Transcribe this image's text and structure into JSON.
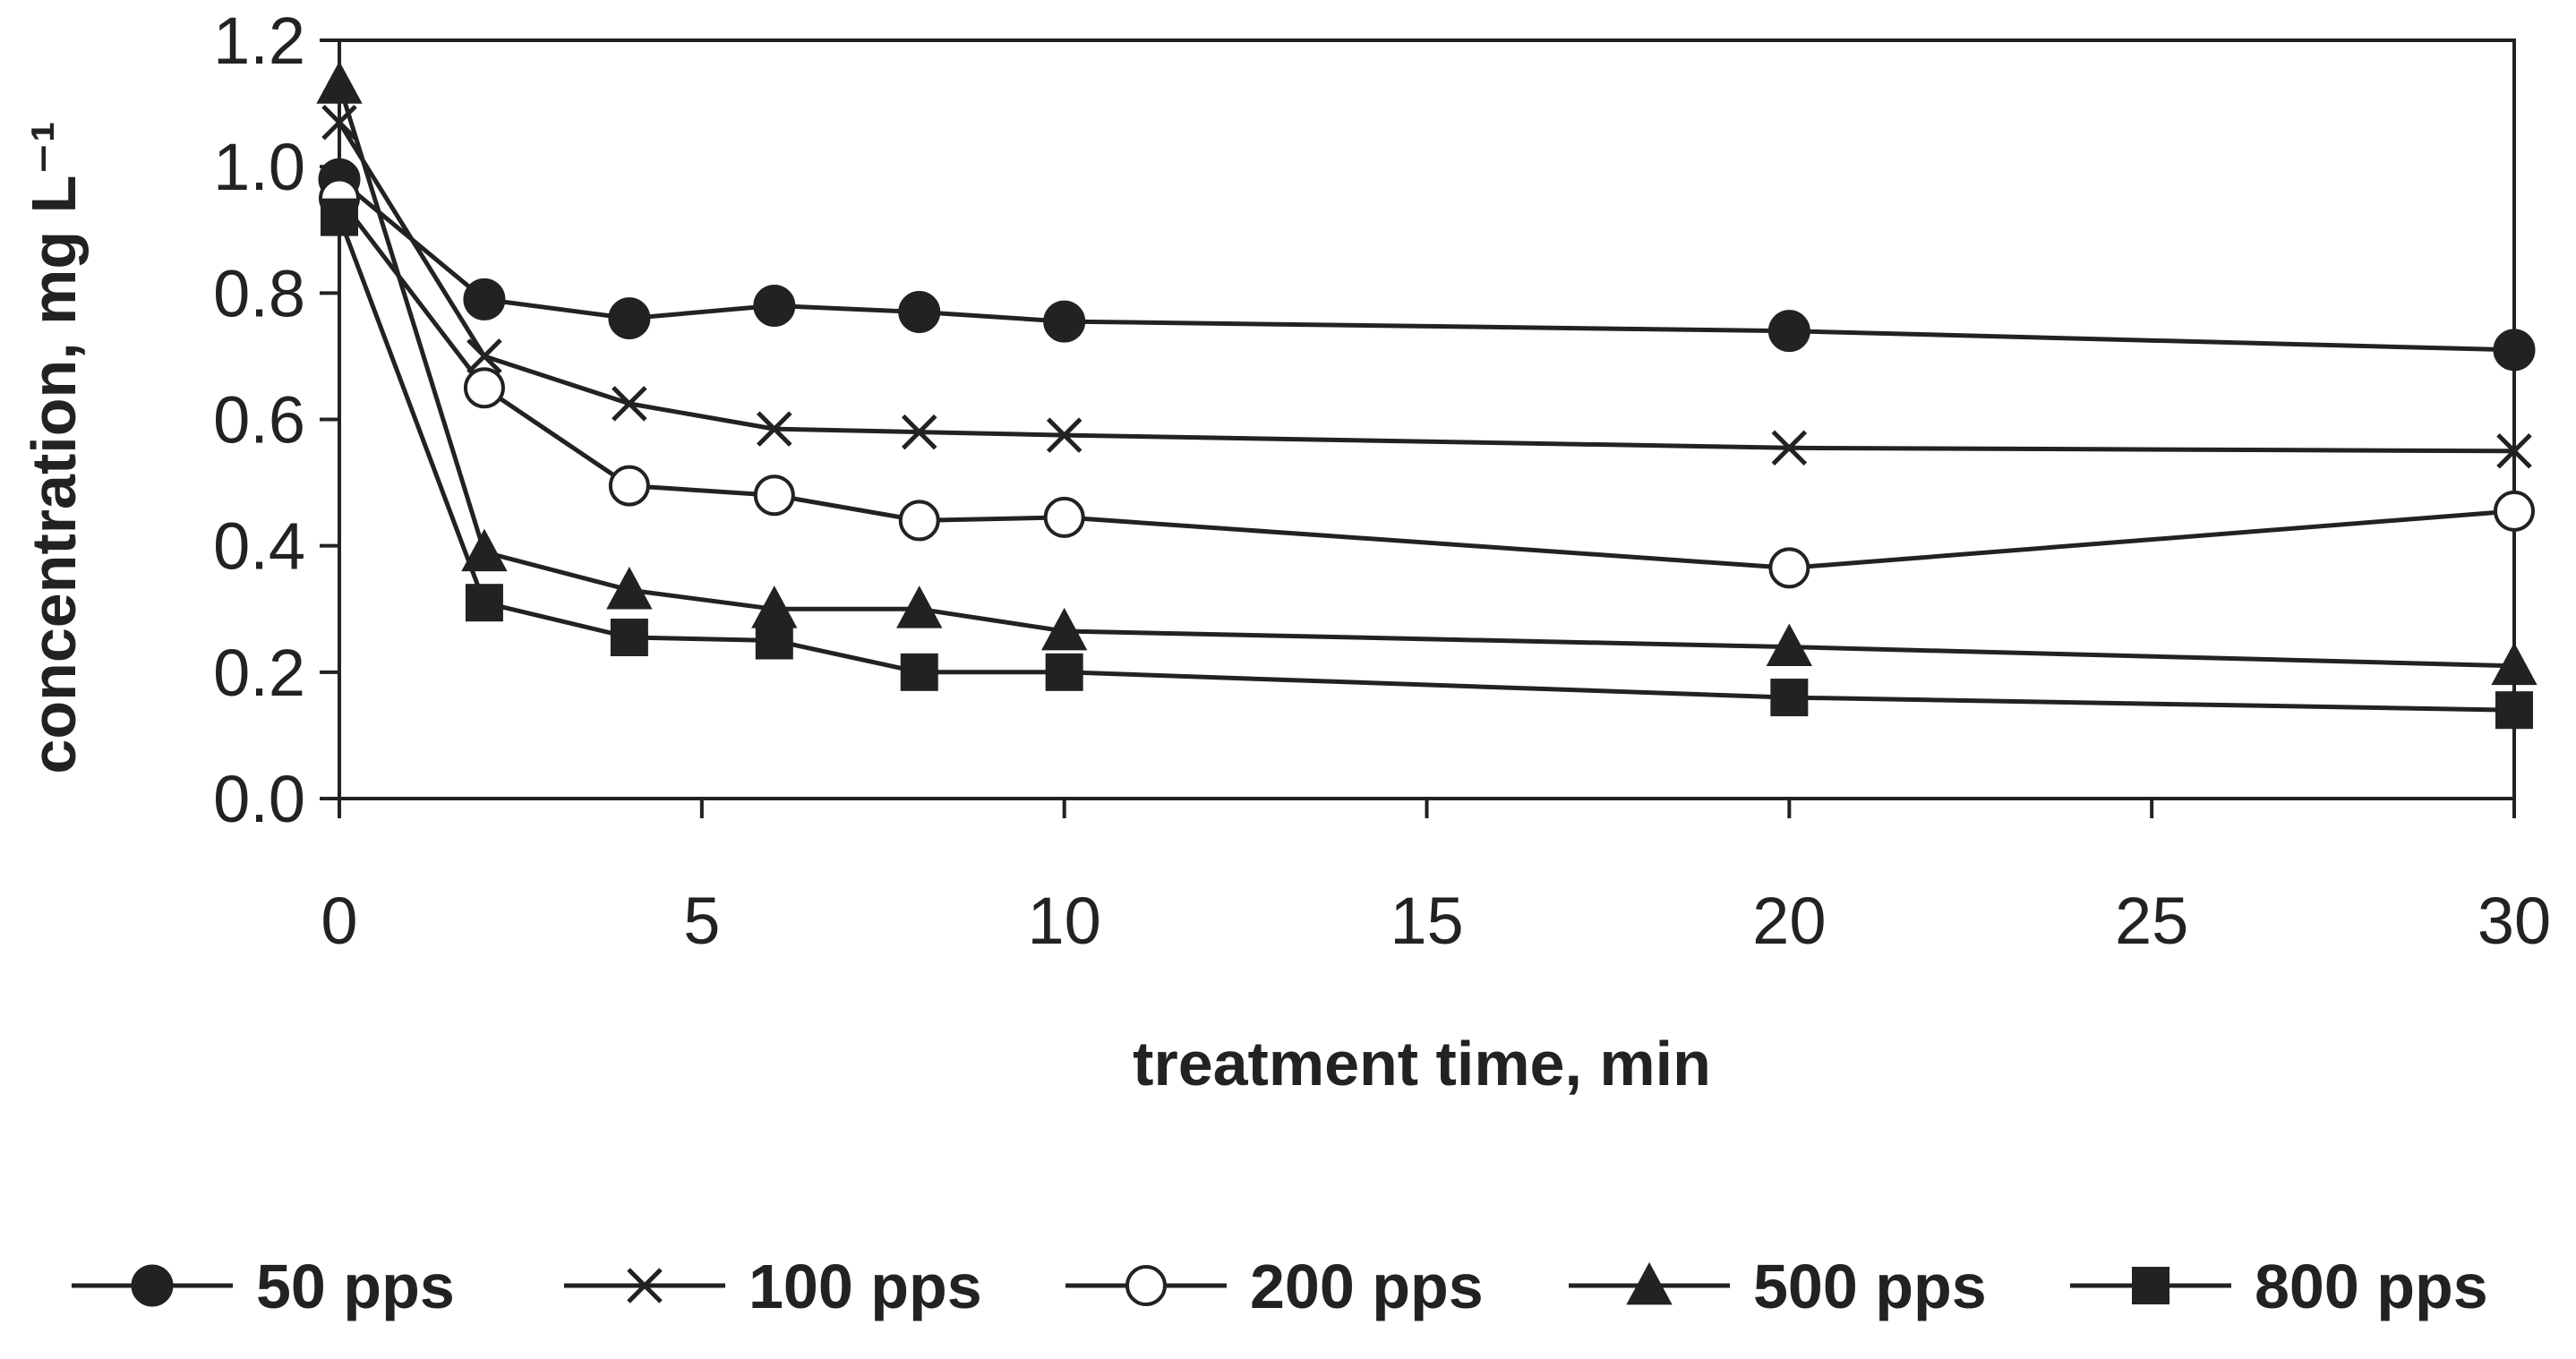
{
  "chart_data": {
    "type": "line",
    "title": "",
    "xlabel": "treatment time, min",
    "ylabel": "concentration, mg L⁻¹",
    "xlim": [
      0,
      30
    ],
    "ylim": [
      0,
      1.2
    ],
    "xticks": [
      0,
      5,
      10,
      15,
      20,
      25,
      30
    ],
    "yticks": [
      0.0,
      0.2,
      0.4,
      0.6,
      0.8,
      1.0,
      1.2
    ],
    "ytick_labels": [
      "0.0",
      "0.2",
      "0.4",
      "0.6",
      "0.8",
      "1.0",
      "1.2"
    ],
    "x": [
      0,
      2,
      4,
      6,
      8,
      10,
      20,
      30
    ],
    "grid": false,
    "legend_position": "bottom",
    "series": [
      {
        "name": "50 pps",
        "marker": "filled-circle",
        "color": "#222222",
        "values": [
          0.98,
          0.79,
          0.76,
          0.78,
          0.77,
          0.755,
          0.74,
          0.71
        ]
      },
      {
        "name": "100 pps",
        "marker": "cross",
        "color": "#222222",
        "values": [
          1.07,
          0.7,
          0.625,
          0.585,
          0.58,
          0.575,
          0.555,
          0.55
        ]
      },
      {
        "name": "200 pps",
        "marker": "open-circle",
        "color": "#222222",
        "values": [
          0.95,
          0.65,
          0.495,
          0.48,
          0.44,
          0.445,
          0.365,
          0.455
        ]
      },
      {
        "name": "500 pps",
        "marker": "filled-triangle",
        "color": "#222222",
        "values": [
          1.13,
          0.39,
          0.33,
          0.3,
          0.3,
          0.265,
          0.24,
          0.21
        ]
      },
      {
        "name": "800 pps",
        "marker": "filled-square",
        "color": "#222222",
        "values": [
          0.92,
          0.31,
          0.255,
          0.25,
          0.2,
          0.2,
          0.16,
          0.14
        ]
      }
    ]
  }
}
